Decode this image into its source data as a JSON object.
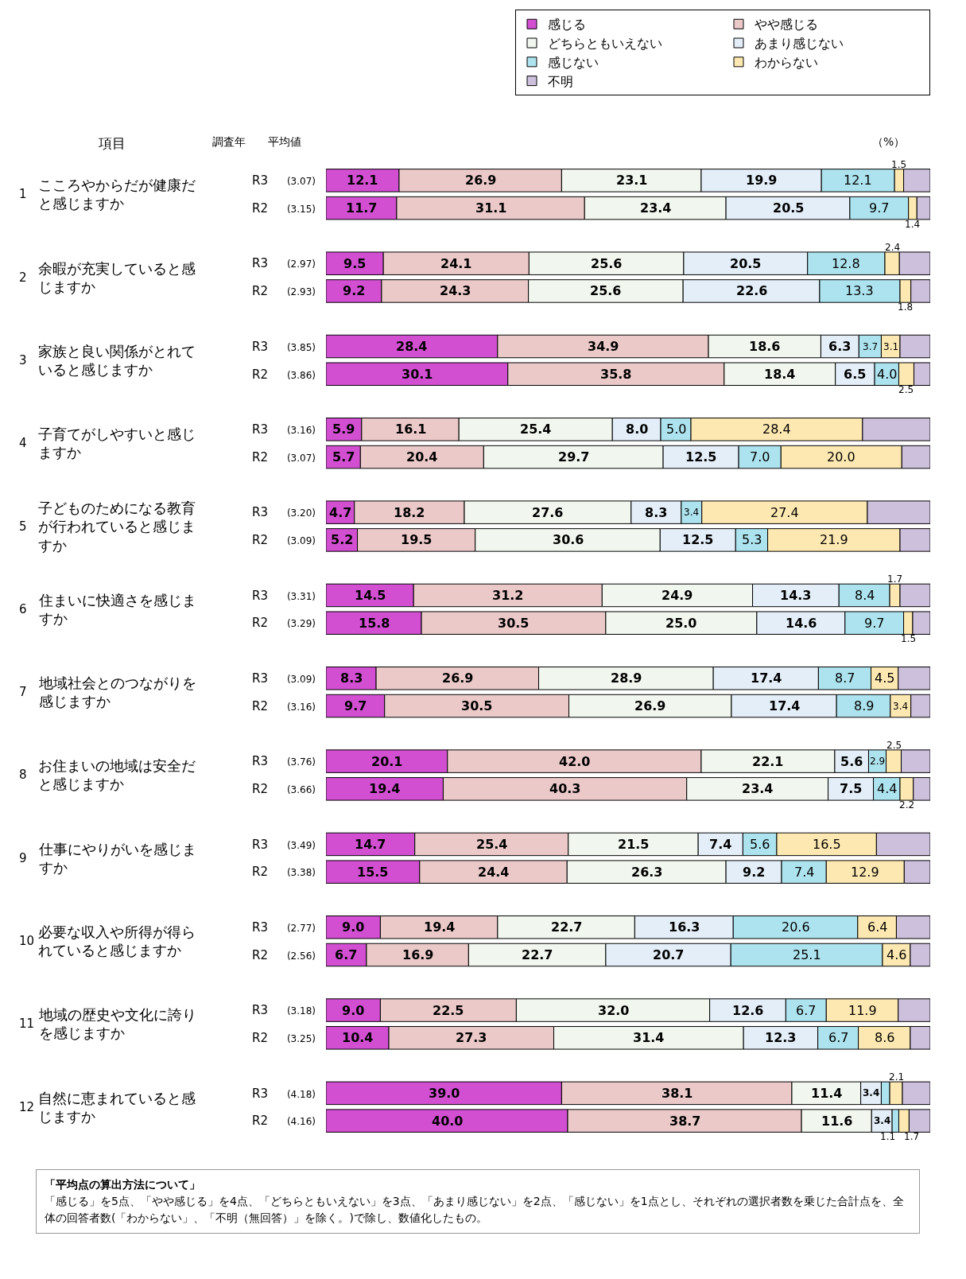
{
  "chart_data": {
    "type": "bar",
    "orientation": "horizontal",
    "stacked": true,
    "categories": [
      "R3 (3.07)",
      "R2 (3.15)",
      "R3 (2.97)",
      "R2 (2.93)",
      "R3 (3.85)",
      "R2 (3.86)",
      "R3 (3.16)",
      "R2 (3.07)",
      "R3 (3.20)",
      "R2 (3.09)",
      "R3 (3.31)",
      "R2 (3.29)",
      "R3 (3.09)",
      "R2 (3.16)",
      "R3 (3.76)",
      "R2 (3.66)",
      "R3 (3.49)",
      "R2 (3.38)",
      "R3 (2.77)",
      "R2 (2.56)",
      "R3 (3.18)",
      "R2 (3.25)",
      "R3 (4.18)",
      "R2 (4.16)"
    ],
    "series": [
      {
        "name": "感じる",
        "color": "#d24fd2",
        "values": [
          12.1,
          11.7,
          9.5,
          9.2,
          28.4,
          30.1,
          5.9,
          5.7,
          4.7,
          5.2,
          14.5,
          15.8,
          8.3,
          9.7,
          20.1,
          19.4,
          14.7,
          15.5,
          9.0,
          6.7,
          9.0,
          10.4,
          39.0,
          40.0
        ],
        "value_labels": [
          "12.1",
          "11.7",
          "9.5",
          "9.2",
          "28.4",
          "30.1",
          "5.9",
          "5.7",
          "4.7",
          "5.2",
          "14.5",
          "15.8",
          "8.3",
          "9.7",
          "20.1",
          "19.4",
          "14.7",
          "15.5",
          "9.0",
          "6.7",
          "9.0",
          "10.4",
          "39.0",
          "40.0"
        ]
      },
      {
        "name": "やや感じる",
        "color": "#ebc9c9",
        "values": [
          26.9,
          31.1,
          24.1,
          24.3,
          34.9,
          35.8,
          16.1,
          20.4,
          18.2,
          19.5,
          31.2,
          30.5,
          26.9,
          30.5,
          42.0,
          40.3,
          25.4,
          24.4,
          19.4,
          16.9,
          22.5,
          27.3,
          38.1,
          38.7
        ],
        "value_labels": [
          "26.9",
          "31.1",
          "24.1",
          "24.3",
          "34.9",
          "35.8",
          "16.1",
          "20.4",
          "18.2",
          "19.5",
          "31.2",
          "30.5",
          "26.9",
          "30.5",
          "42.0",
          "40.3",
          "25.4",
          "24.4",
          "19.4",
          "16.9",
          "22.5",
          "27.3",
          "38.1",
          "38.7"
        ]
      },
      {
        "name": "どちらともいえない",
        "color": "#f1f7ee",
        "values": [
          23.1,
          23.4,
          25.6,
          25.6,
          18.6,
          18.4,
          25.4,
          29.7,
          27.6,
          30.6,
          24.9,
          25.0,
          28.9,
          26.9,
          22.1,
          23.4,
          21.5,
          26.3,
          22.7,
          22.7,
          32.0,
          31.4,
          11.4,
          11.6
        ],
        "value_labels": [
          "23.1",
          "23.4",
          "25.6",
          "25.6",
          "18.6",
          "18.4",
          "25.4",
          "29.7",
          "27.6",
          "30.6",
          "24.9",
          "25.0",
          "28.9",
          "26.9",
          "22.1",
          "23.4",
          "21.5",
          "26.3",
          "22.7",
          "22.7",
          "32.0",
          "31.4",
          "11.4",
          "11.6"
        ]
      },
      {
        "name": "あまり感じない",
        "color": "#e3eef8",
        "values": [
          19.9,
          20.5,
          20.5,
          22.6,
          6.3,
          6.5,
          8.0,
          12.5,
          8.3,
          12.5,
          14.3,
          14.6,
          17.4,
          17.4,
          5.6,
          7.5,
          7.4,
          9.2,
          16.3,
          20.7,
          12.6,
          12.3,
          3.4,
          3.4
        ],
        "value_labels": [
          "19.9",
          "20.5",
          "20.5",
          "22.6",
          "6.3",
          "6.5",
          "8.0",
          "12.5",
          "8.3",
          "12.5",
          "14.3",
          "14.6",
          "17.4",
          "17.4",
          "5.6",
          "7.5",
          "7.4",
          "9.2",
          "16.3",
          "20.7",
          "12.6",
          "12.3",
          "3.4",
          "3.4"
        ]
      },
      {
        "name": "感じない",
        "color": "#ade3ee",
        "values": [
          12.1,
          9.7,
          12.8,
          13.3,
          3.7,
          4.0,
          5.0,
          7.0,
          3.4,
          5.3,
          8.4,
          9.7,
          8.7,
          8.9,
          2.9,
          4.4,
          5.6,
          7.4,
          20.6,
          25.1,
          6.7,
          6.7,
          1.4,
          1.1
        ],
        "value_labels": [
          "12.1",
          "9.7",
          "12.8",
          "13.3",
          "3.7",
          "4.0",
          "5.0",
          "7.0",
          "3.4",
          "5.3",
          "8.4",
          "9.7",
          "8.7",
          "8.9",
          "2.9",
          "4.4",
          "5.6",
          "7.4",
          "20.6",
          "25.1",
          "6.7",
          "6.7",
          null,
          "1.1"
        ]
      },
      {
        "name": "わからない",
        "color": "#fce8b0",
        "values": [
          1.5,
          1.4,
          2.4,
          1.8,
          3.1,
          2.5,
          28.4,
          20.0,
          27.4,
          21.9,
          1.7,
          1.5,
          4.5,
          3.4,
          2.5,
          2.2,
          16.5,
          12.9,
          6.4,
          4.6,
          11.9,
          8.6,
          2.1,
          1.7
        ],
        "value_labels": [
          "1.5",
          "1.4",
          "2.4",
          "1.8",
          "3.1",
          "2.5",
          "28.4",
          "20.0",
          "27.4",
          "21.9",
          "1.7",
          "1.5",
          "4.5",
          "3.4",
          "2.5",
          "2.2",
          "16.5",
          "12.9",
          "6.4",
          "4.6",
          "11.9",
          "8.6",
          "2.1",
          "1.7"
        ]
      },
      {
        "name": "不明",
        "color": "#cdc0dc",
        "values": [
          4.4,
          2.2,
          5.1,
          3.2,
          5.0,
          2.7,
          11.2,
          4.7,
          10.4,
          5.0,
          5.0,
          2.9,
          5.3,
          3.2,
          4.8,
          2.8,
          8.9,
          4.3,
          5.6,
          3.3,
          5.3,
          3.3,
          4.6,
          3.5
        ]
      }
    ],
    "xlim": [
      0,
      100
    ],
    "tick_labels": "y",
    "legend": "top",
    "annotations": [
      "項目",
      "調査年",
      "平均値",
      "（%）",
      "1 こころやからだが健康だと感じますか",
      "2 余暇が充実していると感じますか",
      "3 家族と良い関係がとれていると感じますか",
      "4 子育てがしやすいと感じますか",
      "5 子どものためになる教育が行われていると感じますか",
      "6 住まいに快適さを感じますか",
      "7 地域社会とのつながりを感じますか",
      "8 お住まいの地域は安全だと感じますか",
      "9 仕事にやりがいを感じますか",
      "10 必要な収入や所得が得られていると感じますか",
      "11 地域の歴史や文化に誇りを感じますか",
      "12 自然に恵まれていると感じますか",
      "「平均点の算出方法について」",
      "「感じる」を5点、「やや感じる」を4点、「どちらともいえない」を3点、「あまり感じない」を2点、「感じない」を1点とし、それぞれの選択者数を乗じた合計点を、全体の回答者数(「わからない」、「不明（無回答）」を除く。)で除し、数値化したもの。"
    ]
  }
}
